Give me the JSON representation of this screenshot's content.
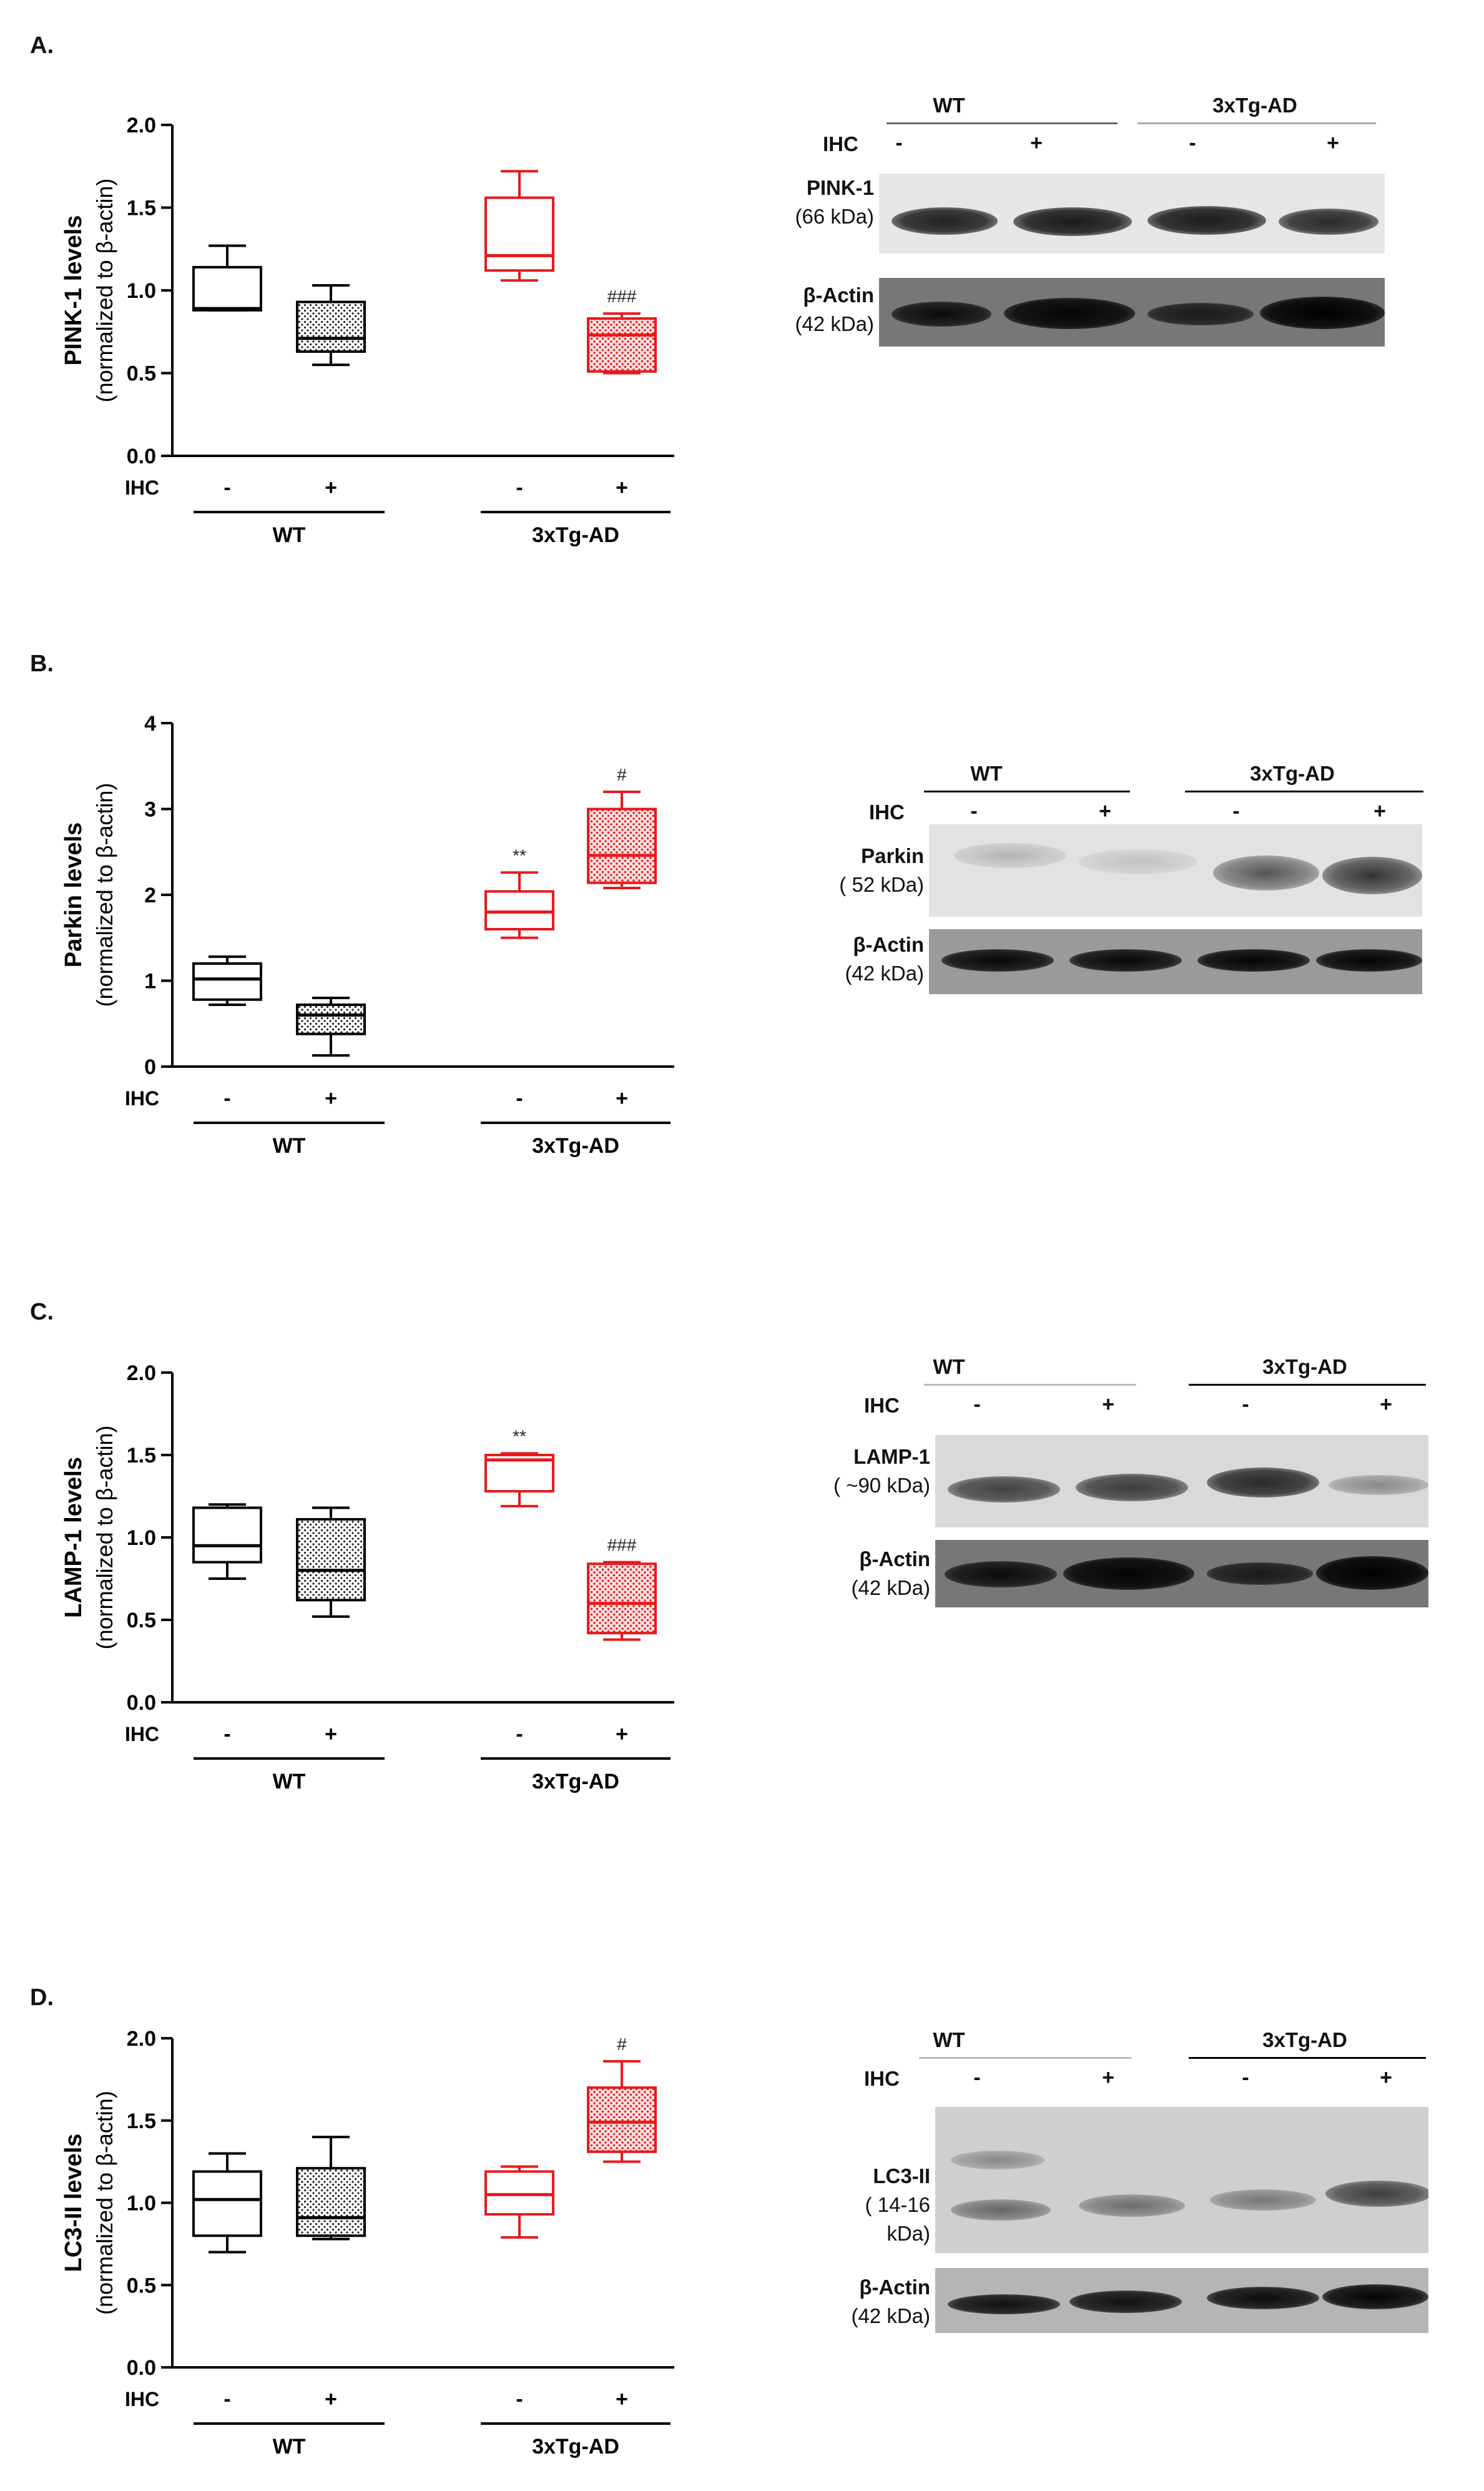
{
  "colors": {
    "wt": "#000000",
    "tg": "#e8191c",
    "tgFill": "#f4b3b3",
    "wtFill": "#cfcfcf"
  },
  "panels": [
    {
      "letter": "A.",
      "ylabel": "PINK-1 levels",
      "ylabel_sub": "(normalized to β-actin)",
      "ihc_label": "IHC",
      "signs": [
        "-",
        "+",
        "-",
        "+"
      ],
      "groups": [
        "WT",
        "3xTg-AD"
      ],
      "blot": {
        "groups": [
          "WT",
          "3xTg-AD"
        ],
        "ihc_label": "IHC",
        "signs": [
          "-",
          "+",
          "-",
          "+"
        ],
        "rows": [
          {
            "name": "PINK-1",
            "mw": "(66 kDa)"
          },
          {
            "name": "β-Actin",
            "mw": "(42 kDa)"
          }
        ]
      }
    },
    {
      "letter": "B.",
      "ylabel": "Parkin levels",
      "ylabel_sub": "(normalized to β-actin)",
      "ihc_label": "IHC",
      "signs": [
        "-",
        "+",
        "-",
        "+"
      ],
      "groups": [
        "WT",
        "3xTg-AD"
      ],
      "blot": {
        "groups": [
          "WT",
          "3xTg-AD"
        ],
        "ihc_label": "IHC",
        "signs": [
          "-",
          "+",
          "-",
          "+"
        ],
        "rows": [
          {
            "name": "Parkin",
            "mw": "( 52 kDa)"
          },
          {
            "name": "β-Actin",
            "mw": "(42 kDa)"
          }
        ]
      }
    },
    {
      "letter": "C.",
      "ylabel": "LAMP-1 levels",
      "ylabel_sub": "(normalized to β-actin)",
      "ihc_label": "IHC",
      "signs": [
        "-",
        "+",
        "-",
        "+"
      ],
      "groups": [
        "WT",
        "3xTg-AD"
      ],
      "blot": {
        "groups": [
          "WT",
          "3xTg-AD"
        ],
        "ihc_label": "IHC",
        "signs": [
          "-",
          "+",
          "-",
          "+"
        ],
        "rows": [
          {
            "name": "LAMP-1",
            "mw": "( ~90 kDa)"
          },
          {
            "name": "β-Actin",
            "mw": "(42 kDa)"
          }
        ]
      }
    },
    {
      "letter": "D.",
      "ylabel": "LC3-II levels",
      "ylabel_sub": "(normalized to β-actin)",
      "ihc_label": "IHC",
      "signs": [
        "-",
        "+",
        "-",
        "+"
      ],
      "groups": [
        "WT",
        "3xTg-AD"
      ],
      "blot": {
        "groups": [
          "WT",
          "3xTg-AD"
        ],
        "ihc_label": "IHC",
        "signs": [
          "-",
          "+",
          "-",
          "+"
        ],
        "rows": [
          {
            "name": "LC3-II",
            "mw": "( 14-16 kDa)"
          },
          {
            "name": "β-Actin",
            "mw": "(42 kDa)"
          }
        ]
      }
    }
  ],
  "chart_data": [
    {
      "type": "box",
      "panel": "A.",
      "ylabel": "PINK-1 levels (normalized to β-actin)",
      "ylim": [
        0,
        2.0
      ],
      "yticks": [
        "0.0",
        "0.5",
        "1.0",
        "1.5",
        "2.0"
      ],
      "categories": [
        "WT -",
        "WT +",
        "3xTg-AD -",
        "3xTg-AD +"
      ],
      "boxes": [
        {
          "min": 0.88,
          "q1": 0.88,
          "median": 0.89,
          "q3": 1.14,
          "max": 1.27,
          "group": "WT",
          "ihc": "-",
          "pattern": "none",
          "annotation": ""
        },
        {
          "min": 0.55,
          "q1": 0.63,
          "median": 0.71,
          "q3": 0.93,
          "max": 1.03,
          "group": "WT",
          "ihc": "+",
          "pattern": "dots",
          "annotation": ""
        },
        {
          "min": 1.06,
          "q1": 1.12,
          "median": 1.21,
          "q3": 1.56,
          "max": 1.72,
          "group": "3xTg-AD",
          "ihc": "-",
          "pattern": "none",
          "annotation": ""
        },
        {
          "min": 0.5,
          "q1": 0.51,
          "median": 0.73,
          "q3": 0.83,
          "max": 0.86,
          "group": "3xTg-AD",
          "ihc": "+",
          "pattern": "dots",
          "annotation": "###"
        }
      ]
    },
    {
      "type": "box",
      "panel": "B.",
      "ylabel": "Parkin levels (normalized to β-actin)",
      "ylim": [
        0,
        4
      ],
      "yticks": [
        "0",
        "1",
        "2",
        "3",
        "4"
      ],
      "categories": [
        "WT -",
        "WT +",
        "3xTg-AD -",
        "3xTg-AD +"
      ],
      "boxes": [
        {
          "min": 0.72,
          "q1": 0.78,
          "median": 1.02,
          "q3": 1.2,
          "max": 1.28,
          "group": "WT",
          "ihc": "-",
          "pattern": "none",
          "annotation": ""
        },
        {
          "min": 0.13,
          "q1": 0.38,
          "median": 0.6,
          "q3": 0.72,
          "max": 0.8,
          "group": "WT",
          "ihc": "+",
          "pattern": "dots",
          "annotation": ""
        },
        {
          "min": 1.5,
          "q1": 1.6,
          "median": 1.8,
          "q3": 2.04,
          "max": 2.26,
          "group": "3xTg-AD",
          "ihc": "-",
          "pattern": "none",
          "annotation": "**"
        },
        {
          "min": 2.08,
          "q1": 2.14,
          "median": 2.46,
          "q3": 3.0,
          "max": 3.2,
          "group": "3xTg-AD",
          "ihc": "+",
          "pattern": "dots",
          "annotation": "#"
        }
      ]
    },
    {
      "type": "box",
      "panel": "C.",
      "ylabel": "LAMP-1 levels (normalized to β-actin)",
      "ylim": [
        0,
        2.0
      ],
      "yticks": [
        "0.0",
        "0.5",
        "1.0",
        "1.5",
        "2.0"
      ],
      "categories": [
        "WT -",
        "WT +",
        "3xTg-AD -",
        "3xTg-AD +"
      ],
      "boxes": [
        {
          "min": 0.75,
          "q1": 0.85,
          "median": 0.95,
          "q3": 1.18,
          "max": 1.2,
          "group": "WT",
          "ihc": "-",
          "pattern": "none",
          "annotation": ""
        },
        {
          "min": 0.52,
          "q1": 0.62,
          "median": 0.8,
          "q3": 1.11,
          "max": 1.18,
          "group": "WT",
          "ihc": "+",
          "pattern": "dots",
          "annotation": ""
        },
        {
          "min": 1.19,
          "q1": 1.28,
          "median": 1.47,
          "q3": 1.5,
          "max": 1.51,
          "group": "3xTg-AD",
          "ihc": "-",
          "pattern": "none",
          "annotation": "**"
        },
        {
          "min": 0.38,
          "q1": 0.42,
          "median": 0.6,
          "q3": 0.84,
          "max": 0.85,
          "group": "3xTg-AD",
          "ihc": "+",
          "pattern": "dots",
          "annotation": "###"
        }
      ]
    },
    {
      "type": "box",
      "panel": "D.",
      "ylabel": "LC3-II levels (normalized to β-actin)",
      "ylim": [
        0,
        2.0
      ],
      "yticks": [
        "0.0",
        "0.5",
        "1.0",
        "1.5",
        "2.0"
      ],
      "categories": [
        "WT -",
        "WT +",
        "3xTg-AD -",
        "3xTg-AD +"
      ],
      "boxes": [
        {
          "min": 0.7,
          "q1": 0.8,
          "median": 1.02,
          "q3": 1.19,
          "max": 1.3,
          "group": "WT",
          "ihc": "-",
          "pattern": "none",
          "annotation": ""
        },
        {
          "min": 0.78,
          "q1": 0.8,
          "median": 0.91,
          "q3": 1.21,
          "max": 1.4,
          "group": "WT",
          "ihc": "+",
          "pattern": "dots",
          "annotation": ""
        },
        {
          "min": 0.79,
          "q1": 0.93,
          "median": 1.05,
          "q3": 1.19,
          "max": 1.22,
          "group": "3xTg-AD",
          "ihc": "-",
          "pattern": "none",
          "annotation": ""
        },
        {
          "min": 1.25,
          "q1": 1.31,
          "median": 1.49,
          "q3": 1.7,
          "max": 1.86,
          "group": "3xTg-AD",
          "ihc": "+",
          "pattern": "dots",
          "annotation": "#"
        }
      ]
    }
  ]
}
